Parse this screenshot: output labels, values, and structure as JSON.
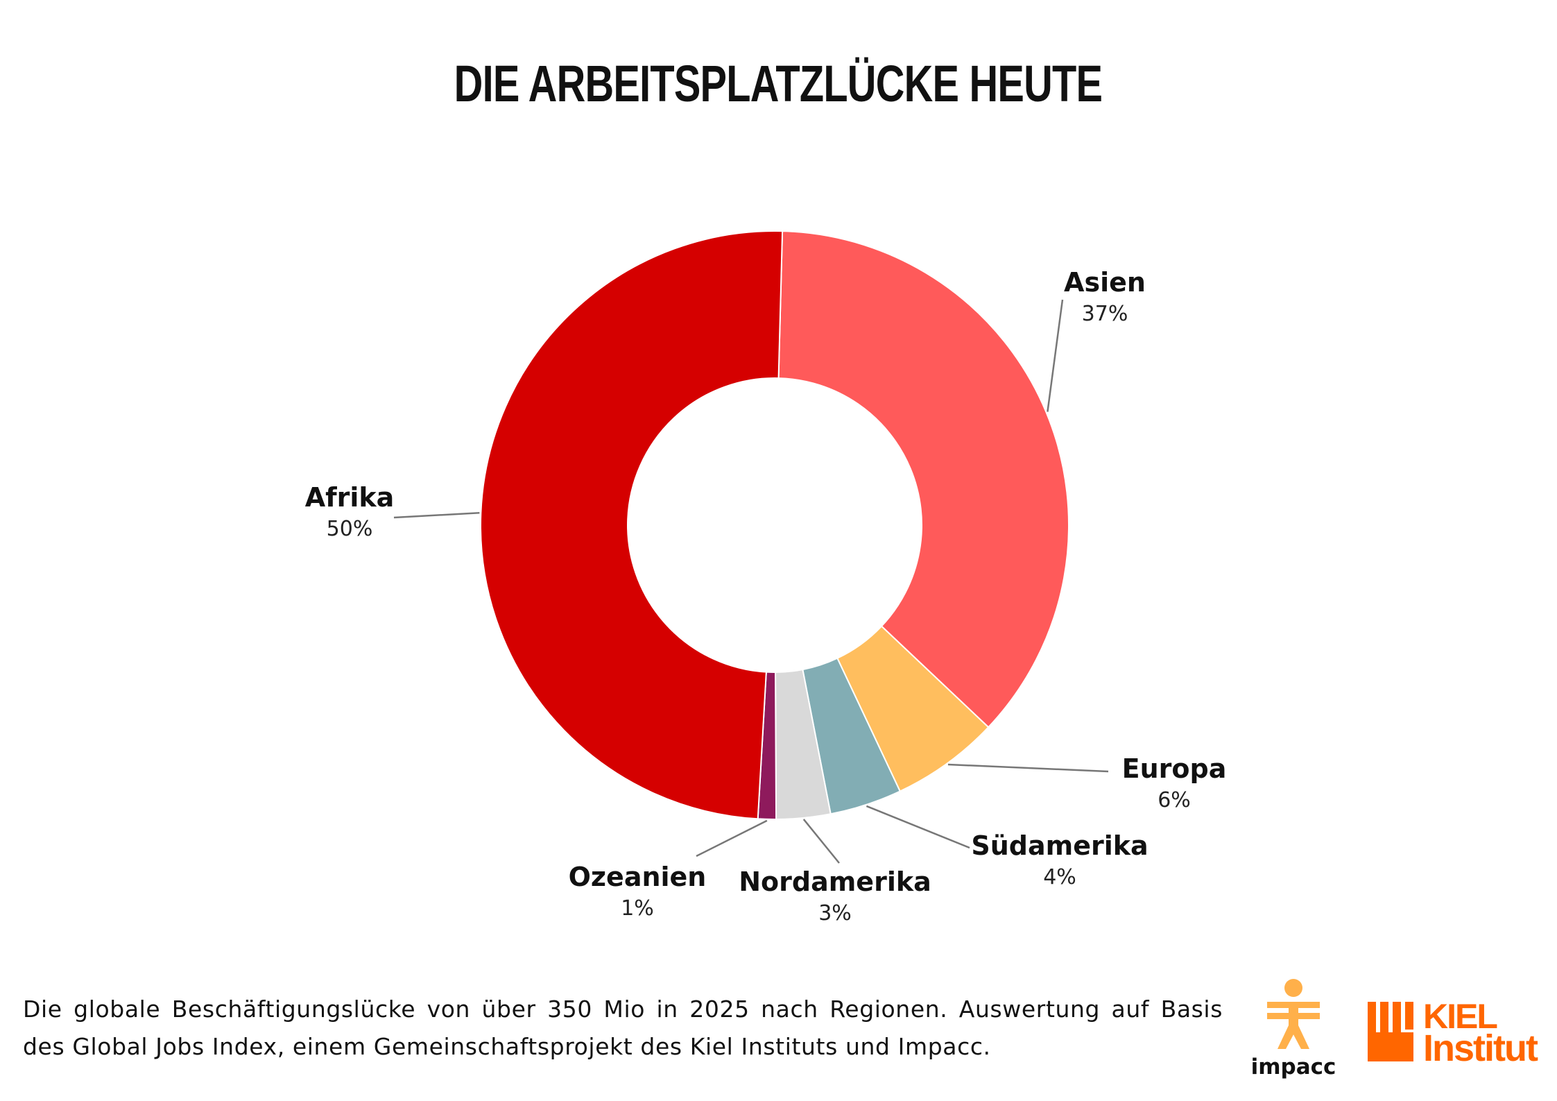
{
  "chart_data": {
    "type": "pie",
    "title": "DIE ARBEITSPLATZLÜCKE HEUTE",
    "slices": [
      {
        "label": "Asien",
        "value": 37,
        "value_text": "37%",
        "color": "#ff5a5a"
      },
      {
        "label": "Europa",
        "value": 6,
        "value_text": "6%",
        "color": "#ffbe5e"
      },
      {
        "label": "Südamerika",
        "value": 4,
        "value_text": "4%",
        "color": "#82adb4"
      },
      {
        "label": "Nordamerika",
        "value": 3,
        "value_text": "3%",
        "color": "#d9d9d9"
      },
      {
        "label": "Ozeanien",
        "value": 1,
        "value_text": "1%",
        "color": "#8e1a5c"
      },
      {
        "label": "Afrika",
        "value": 50,
        "value_text": "50%",
        "color": "#d50000"
      }
    ],
    "donut": true,
    "leader_line_color": "#777777"
  },
  "caption": "Die globale Beschäftigungslücke von über 350 Mio in 2025 nach Regionen. Auswertung auf Basis des Global Jobs Index, einem Gemeinschaftsprojekt des Kiel Instituts und Impacc.",
  "logos": {
    "impacc": {
      "text": "impacc",
      "color": "#ffb04a"
    },
    "kiel": {
      "line1": "KIEL",
      "line2": "Institut",
      "color": "#ff6600"
    }
  }
}
